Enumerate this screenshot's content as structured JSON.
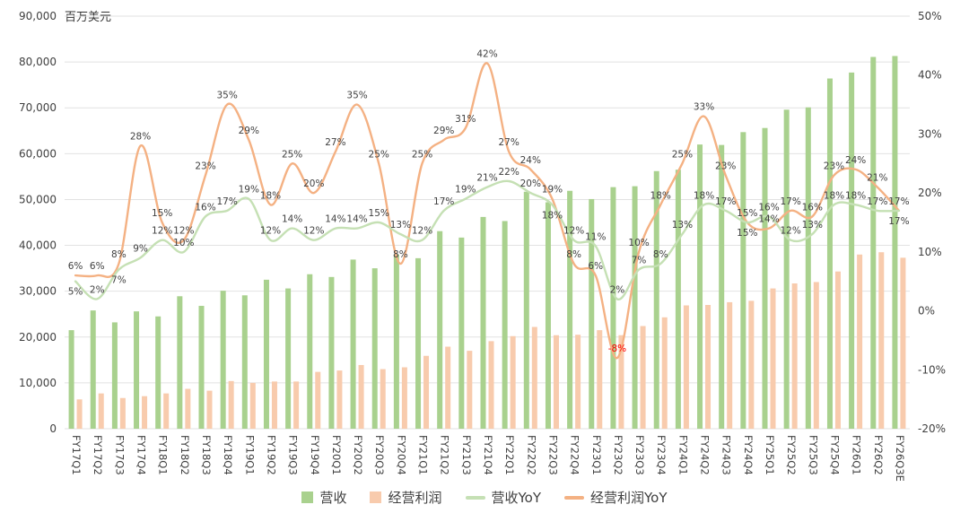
{
  "chart_data": {
    "type": "bar+line",
    "title": "",
    "unit_label": "百万美元",
    "categories": [
      "FY17Q1",
      "FY17Q2",
      "FY17Q3",
      "FY17Q4",
      "FY18Q1",
      "FY18Q2",
      "FY18Q3",
      "FY18Q4",
      "FY19Q1",
      "FY19Q2",
      "FY19Q3",
      "FY19Q4",
      "FY20Q1",
      "FY20Q2",
      "FY20Q3",
      "FY20Q4",
      "FY21Q1",
      "FY21Q2",
      "FY21Q3",
      "FY21Q4",
      "FY22Q1",
      "FY22Q2",
      "FY22Q3",
      "FY22Q4",
      "FY23Q1",
      "FY23Q2",
      "FY23Q3",
      "FY23Q4",
      "FY24Q1",
      "FY24Q2",
      "FY24Q3",
      "FY24Q4",
      "FY25Q1",
      "FY25Q2",
      "FY25Q3",
      "FY25Q4",
      "FY26Q1",
      "FY26Q2",
      "FY26Q3E"
    ],
    "bar_series": [
      {
        "name": "营收",
        "color": "#a9d18e",
        "values": [
          21500,
          25800,
          23200,
          25600,
          24500,
          28900,
          26800,
          30100,
          29100,
          32500,
          30600,
          33700,
          33100,
          36900,
          35000,
          38000,
          37200,
          43100,
          41700,
          46200,
          45300,
          51700,
          49400,
          51900,
          50100,
          52700,
          52900,
          56200,
          56500,
          62000,
          61900,
          64700,
          65600,
          69600,
          70100,
          76400,
          77700,
          81100,
          81300
        ]
      },
      {
        "name": "经营利润",
        "color": "#f8cbad",
        "values": [
          6400,
          7700,
          6700,
          7100,
          7700,
          8700,
          8300,
          10400,
          10000,
          10300,
          10300,
          12400,
          12700,
          13900,
          13000,
          13400,
          15900,
          17900,
          17000,
          19100,
          20200,
          22200,
          20400,
          20500,
          21500,
          20400,
          22400,
          24300,
          26900,
          27000,
          27600,
          27900,
          30600,
          31700,
          32000,
          34300,
          38000,
          38500,
          37300
        ]
      }
    ],
    "line_series": [
      {
        "name": "营收YoY",
        "color": "#c5e0b4",
        "values": [
          5,
          2,
          7,
          9,
          12,
          10,
          16,
          17,
          19,
          12,
          14,
          12,
          14,
          14,
          15,
          13,
          12,
          17,
          19,
          21,
          22,
          20,
          18,
          12,
          11,
          2,
          7,
          8,
          13,
          18,
          17,
          15,
          16,
          12,
          13,
          18,
          18,
          17,
          17
        ]
      },
      {
        "name": "经营利润YoY",
        "color": "#f4b183",
        "values": [
          6,
          6,
          8,
          28,
          15,
          12,
          23,
          35,
          29,
          18,
          25,
          20,
          27,
          35,
          25,
          8,
          25,
          29,
          31,
          42,
          27,
          24,
          19,
          8,
          6,
          -8,
          10,
          18,
          25,
          33,
          23,
          15,
          14,
          17,
          16,
          23,
          24,
          21,
          17
        ]
      }
    ],
    "left_axis": {
      "min": 0,
      "max": 90000,
      "step": 10000,
      "tick_labels": [
        "0",
        "10,000",
        "20,000",
        "30,000",
        "40,000",
        "50,000",
        "60,000",
        "70,000",
        "80,000",
        "90,000"
      ]
    },
    "right_axis": {
      "min": -20,
      "max": 50,
      "step": 10,
      "tick_labels": [
        "-20%",
        "-10%",
        "0%",
        "10%",
        "20%",
        "30%",
        "40%",
        "50%"
      ]
    },
    "label_color": "#404040",
    "negative_label_color": "#ff0000",
    "grid_color": "#e2e2e2",
    "grid": true,
    "legend_position": "bottom"
  }
}
